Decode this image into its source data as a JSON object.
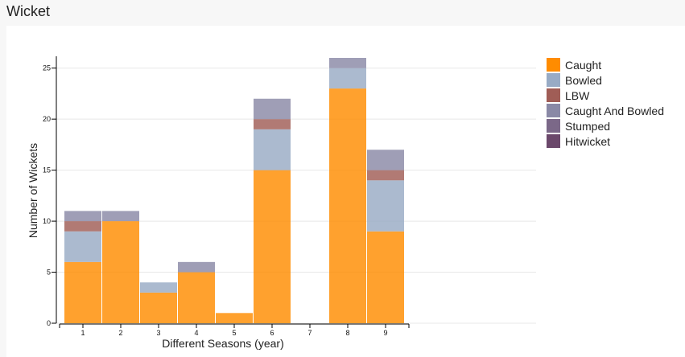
{
  "header": {
    "title": "Wicket"
  },
  "chart_data": {
    "type": "bar",
    "stacked": true,
    "categories": [
      "1",
      "2",
      "3",
      "4",
      "5",
      "6",
      "7",
      "8",
      "9"
    ],
    "series": [
      {
        "name": "Caught",
        "color": "#ff8c00",
        "values": [
          6,
          10,
          3,
          5,
          1,
          15,
          0,
          23,
          9
        ]
      },
      {
        "name": "Bowled",
        "color": "#98abc5",
        "values": [
          3,
          0,
          1,
          0,
          0,
          4,
          0,
          2,
          5
        ]
      },
      {
        "name": "LBW",
        "color": "#a05d56",
        "values": [
          1,
          0,
          0,
          0,
          0,
          1,
          0,
          0,
          1
        ]
      },
      {
        "name": "Caught And Bowled",
        "color": "#8a89a6",
        "values": [
          1,
          1,
          0,
          1,
          0,
          2,
          0,
          1,
          2
        ]
      },
      {
        "name": "Stumped",
        "color": "#7b6888",
        "values": [
          0,
          0,
          0,
          0,
          0,
          0,
          0,
          0,
          0
        ]
      },
      {
        "name": "Hitwicket",
        "color": "#6b486b",
        "values": [
          0,
          0,
          0,
          0,
          0,
          0,
          0,
          0,
          0
        ]
      }
    ],
    "xlabel": "Different Seasons (year)",
    "ylabel": "Number of Wickets",
    "ylim": [
      0,
      26
    ],
    "yticks": [
      0,
      5,
      10,
      15,
      20,
      25
    ],
    "grid": true,
    "legend": "right"
  }
}
